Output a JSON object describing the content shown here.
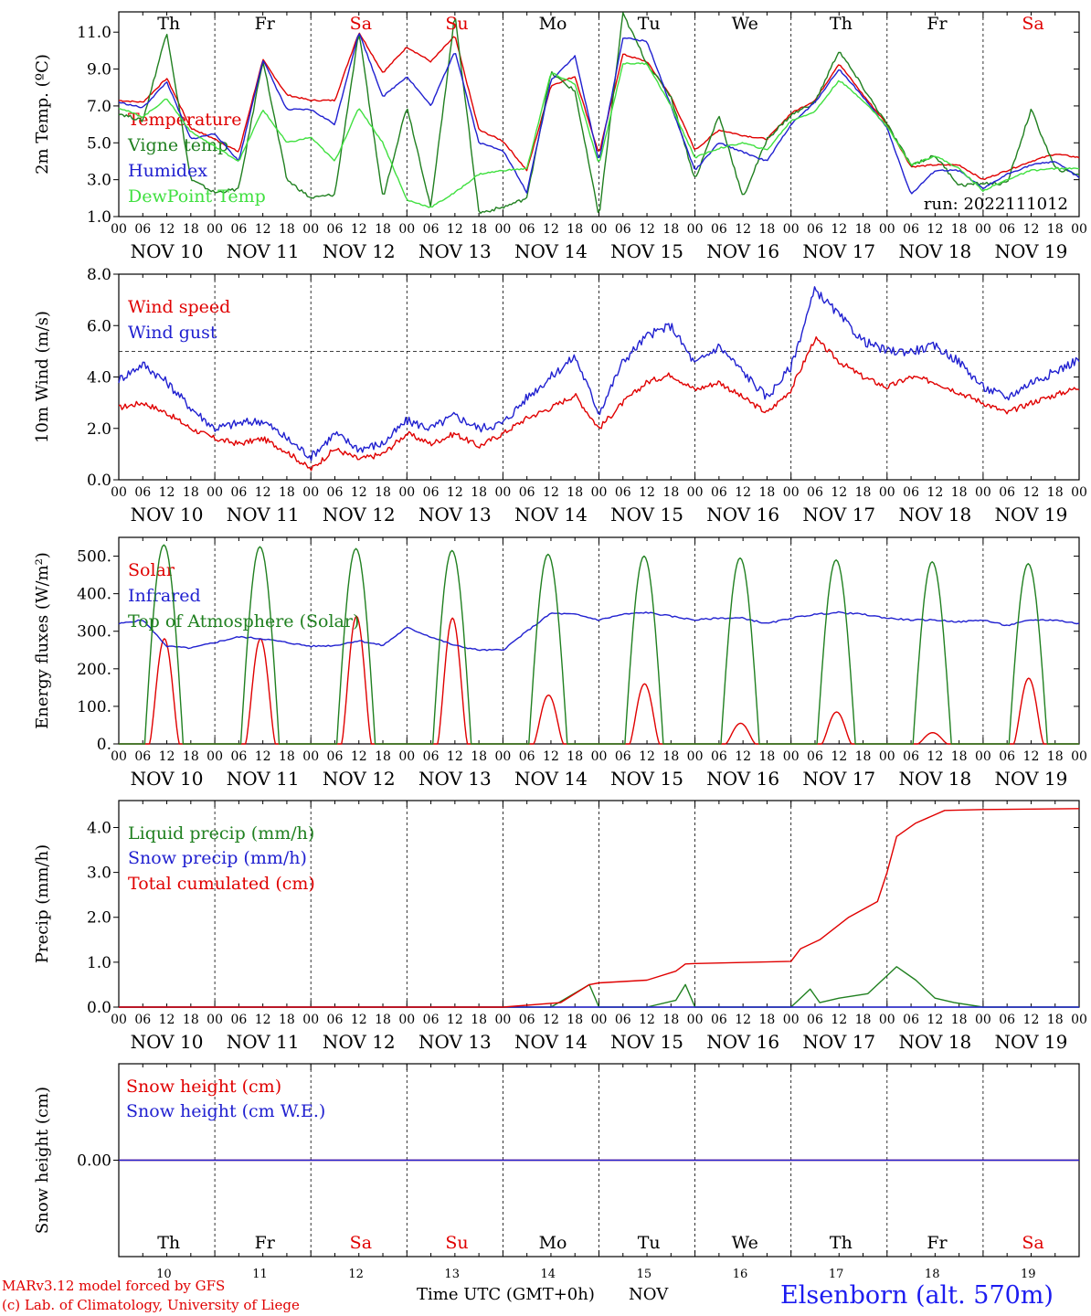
{
  "station": "Elsenborn (alt. 570m)",
  "credit": [
    "MARv3.12 model forced by GFS",
    "(c) Lab. of Climatology, University of Liege"
  ],
  "xaxis": {
    "title": "Time UTC (GMT+0h)",
    "month": "NOV",
    "hour_labels": [
      "00",
      "06",
      "12",
      "18"
    ],
    "end_label": "00",
    "day_labels": [
      "NOV 10",
      "NOV 11",
      "NOV 12",
      "NOV 13",
      "NOV 14",
      "NOV 15",
      "NOV 16",
      "NOV 17",
      "NOV 18",
      "NOV 19"
    ],
    "day_numbers": [
      "10",
      "11",
      "12",
      "13",
      "14",
      "15",
      "16",
      "17",
      "18",
      "19"
    ],
    "weekdays": [
      "Th",
      "Fr",
      "Sa",
      "Su",
      "Mo",
      "Tu",
      "We",
      "Th",
      "Fr",
      "Sa"
    ],
    "weekday_colors": [
      "#000000",
      "#000000",
      "#e00000",
      "#e00000",
      "#000000",
      "#000000",
      "#000000",
      "#000000",
      "#000000",
      "#e00000"
    ]
  },
  "chart_data": [
    {
      "type": "line",
      "ylabel": "2m Temp. (ºC)",
      "yticks": [
        "1.0",
        "3.0",
        "5.0",
        "7.0",
        "9.0",
        "11.0"
      ],
      "ylim": [
        1,
        12.1
      ],
      "annotation": "run: 2022111012",
      "x_unit": "day offset from NOV 10 00 UTC",
      "series": [
        {
          "name": "Temperature",
          "color": "#e00000",
          "x": [
            0,
            0.25,
            0.5,
            0.75,
            1,
            1.25,
            1.5,
            1.75,
            2,
            2.25,
            2.5,
            2.75,
            3,
            3.25,
            3.5,
            3.75,
            4,
            4.25,
            4.5,
            4.75,
            5,
            5.25,
            5.5,
            5.75,
            6,
            6.25,
            6.5,
            6.75,
            7,
            7.25,
            7.5,
            7.75,
            8,
            8.25,
            8.5,
            8.75,
            9,
            9.25,
            9.5,
            9.75,
            10
          ],
          "values": [
            7.3,
            7.2,
            8.5,
            5.8,
            5.2,
            4.5,
            9.5,
            7.6,
            7.3,
            7.3,
            11.0,
            8.8,
            10.2,
            9.4,
            10.8,
            5.7,
            5.1,
            3.5,
            8.1,
            8.6,
            4.4,
            9.8,
            9.4,
            7.5,
            4.6,
            5.7,
            5.4,
            5.2,
            6.6,
            7.3,
            9.3,
            7.6,
            6.0,
            3.7,
            3.8,
            3.8,
            3.0,
            3.5,
            4.0,
            4.4,
            4.2
          ]
        },
        {
          "name": "Vigne temp",
          "color": "#208020",
          "x": [
            0,
            0.25,
            0.5,
            0.75,
            1,
            1.25,
            1.5,
            1.75,
            2,
            2.25,
            2.5,
            2.75,
            3,
            3.25,
            3.5,
            3.75,
            4,
            4.25,
            4.5,
            4.75,
            5,
            5.25,
            5.5,
            5.75,
            6,
            6.25,
            6.5,
            6.75,
            7,
            7.25,
            7.5,
            7.75,
            8,
            8.25,
            8.5,
            8.75,
            9,
            9.25,
            9.5,
            9.75,
            10
          ],
          "values": [
            6.6,
            6.2,
            11.0,
            3.0,
            2.3,
            2.5,
            9.5,
            3.0,
            2.0,
            2.2,
            11.0,
            2.0,
            7.0,
            1.5,
            12.0,
            1.2,
            1.5,
            2.0,
            8.8,
            7.8,
            1.0,
            12.0,
            9.3,
            7.5,
            3.0,
            6.5,
            2.0,
            5.2,
            6.5,
            7.2,
            10.0,
            8.0,
            6.0,
            3.8,
            4.3,
            2.7,
            2.8,
            2.8,
            6.8,
            3.6,
            3.3
          ]
        },
        {
          "name": "Humidex",
          "color": "#2020d0",
          "x": [
            0,
            0.25,
            0.5,
            0.75,
            1,
            1.25,
            1.5,
            1.75,
            2,
            2.25,
            2.5,
            2.75,
            3,
            3.25,
            3.5,
            3.75,
            4,
            4.25,
            4.5,
            4.75,
            5,
            5.25,
            5.5,
            5.75,
            6,
            6.25,
            6.5,
            6.75,
            7,
            7.25,
            7.5,
            7.75,
            8,
            8.25,
            8.5,
            8.75,
            9,
            9.25,
            9.5,
            9.75,
            10
          ],
          "values": [
            7.2,
            6.9,
            8.3,
            5.2,
            5.5,
            4.0,
            9.5,
            6.8,
            6.8,
            6.0,
            11.0,
            7.5,
            8.6,
            7.0,
            10.0,
            5.0,
            4.6,
            2.3,
            8.4,
            9.7,
            4.0,
            10.7,
            10.5,
            7.0,
            3.5,
            5.0,
            4.5,
            4.0,
            6.0,
            7.2,
            9.0,
            7.5,
            5.8,
            2.2,
            3.5,
            3.5,
            2.5,
            3.3,
            3.8,
            4.0,
            3.1
          ]
        },
        {
          "name": "DewPoint Temp",
          "color": "#40e040",
          "x": [
            0,
            0.25,
            0.5,
            0.75,
            1,
            1.25,
            1.5,
            1.75,
            2,
            2.25,
            2.5,
            2.75,
            3,
            3.25,
            3.5,
            3.75,
            4,
            4.25,
            4.5,
            4.75,
            5,
            5.25,
            5.5,
            5.75,
            6,
            6.25,
            6.5,
            6.75,
            7,
            7.25,
            7.5,
            7.75,
            8,
            8.25,
            8.5,
            8.75,
            9,
            9.25,
            9.5,
            9.75,
            10
          ],
          "values": [
            6.9,
            6.4,
            7.4,
            5.6,
            4.8,
            4.0,
            6.8,
            5.0,
            5.3,
            4.0,
            6.9,
            5.0,
            1.9,
            1.5,
            2.3,
            3.3,
            3.5,
            3.6,
            8.8,
            8.2,
            3.8,
            9.3,
            9.3,
            7.0,
            4.2,
            4.7,
            5.0,
            4.6,
            6.2,
            6.7,
            8.4,
            7.3,
            5.9,
            3.8,
            4.3,
            3.6,
            2.4,
            3.0,
            3.5,
            3.6,
            3.6
          ]
        }
      ]
    },
    {
      "type": "line",
      "ylabel": "10m Wind (m/s)",
      "yticks": [
        "0.0",
        "2.0",
        "4.0",
        "6.0",
        "8.0"
      ],
      "ylim": [
        0,
        8
      ],
      "reference_line": 5,
      "x_unit": "day offset from NOV 10 00 UTC",
      "series": [
        {
          "name": "Wind speed",
          "color": "#e00000",
          "x": [
            0,
            0.25,
            0.5,
            0.75,
            1,
            1.25,
            1.5,
            1.75,
            2,
            2.25,
            2.5,
            2.75,
            3,
            3.25,
            3.5,
            3.75,
            4,
            4.25,
            4.5,
            4.75,
            5,
            5.25,
            5.5,
            5.75,
            6,
            6.25,
            6.5,
            6.75,
            7,
            7.25,
            7.5,
            7.75,
            8,
            8.25,
            8.5,
            8.75,
            9,
            9.25,
            9.5,
            9.75,
            10
          ],
          "values": [
            2.8,
            3.0,
            2.6,
            2.0,
            1.6,
            1.4,
            1.6,
            1.1,
            0.4,
            1.2,
            0.8,
            1.0,
            1.8,
            1.4,
            1.8,
            1.3,
            1.8,
            2.4,
            2.8,
            3.3,
            2.0,
            3.0,
            3.8,
            4.1,
            3.5,
            3.8,
            3.2,
            2.6,
            3.5,
            5.5,
            4.6,
            4.0,
            3.6,
            4.0,
            3.8,
            3.4,
            3.0,
            2.6,
            3.0,
            3.3,
            3.6
          ]
        },
        {
          "name": "Wind gust",
          "color": "#2020d0",
          "x": [
            0,
            0.25,
            0.5,
            0.75,
            1,
            1.25,
            1.5,
            1.75,
            2,
            2.25,
            2.5,
            2.75,
            3,
            3.25,
            3.5,
            3.75,
            4,
            4.25,
            4.5,
            4.75,
            5,
            5.25,
            5.5,
            5.75,
            6,
            6.25,
            6.5,
            6.75,
            7,
            7.25,
            7.5,
            7.75,
            8,
            8.25,
            8.5,
            8.75,
            9,
            9.25,
            9.5,
            9.75,
            10
          ],
          "values": [
            3.9,
            4.5,
            3.8,
            2.8,
            2.0,
            2.2,
            2.3,
            1.6,
            0.9,
            1.8,
            1.2,
            1.4,
            2.3,
            2.0,
            2.5,
            2.0,
            2.2,
            3.2,
            4.0,
            4.8,
            2.6,
            4.6,
            5.6,
            6.0,
            4.5,
            5.2,
            4.2,
            3.2,
            4.4,
            7.4,
            6.4,
            5.4,
            5.0,
            5.0,
            5.2,
            4.6,
            3.6,
            3.2,
            3.8,
            4.2,
            4.7
          ]
        }
      ]
    },
    {
      "type": "line",
      "ylabel": "Energy fluxes (W/m²)",
      "yticks": [
        "0.",
        "100.",
        "200.",
        "300.",
        "400.",
        "500."
      ],
      "ylim": [
        0,
        550
      ],
      "x_unit": "day offset from NOV 10 00 UTC",
      "series": [
        {
          "name": "Solar",
          "color": "#e00000",
          "peaks": [
            280,
            280,
            340,
            335,
            130,
            160,
            55,
            85,
            30,
            175
          ]
        },
        {
          "name": "Infrared",
          "color": "#2020d0",
          "x": [
            0,
            0.25,
            0.5,
            0.75,
            1,
            1.25,
            1.5,
            1.75,
            2,
            2.25,
            2.5,
            2.75,
            3,
            3.25,
            3.5,
            3.75,
            4,
            4.25,
            4.5,
            4.75,
            5,
            5.25,
            5.5,
            5.75,
            6,
            6.25,
            6.5,
            6.75,
            7,
            7.25,
            7.5,
            7.75,
            8,
            8.25,
            8.5,
            8.75,
            9,
            9.25,
            9.5,
            9.75,
            10
          ],
          "values": [
            320,
            330,
            260,
            255,
            270,
            285,
            280,
            270,
            260,
            262,
            275,
            262,
            310,
            285,
            262,
            250,
            250,
            300,
            348,
            345,
            330,
            345,
            350,
            340,
            330,
            335,
            335,
            320,
            335,
            345,
            350,
            345,
            335,
            330,
            330,
            325,
            330,
            315,
            330,
            330,
            320
          ]
        },
        {
          "name": "Top of Atmosphere (Solar)",
          "color": "#208020",
          "peaks": [
            530,
            525,
            520,
            515,
            505,
            500,
            495,
            490,
            485,
            480
          ]
        }
      ]
    },
    {
      "type": "line",
      "ylabel": "Precip (mm/h)",
      "yticks": [
        "0.0",
        "1.0",
        "2.0",
        "3.0",
        "4.0"
      ],
      "ylim": [
        0,
        4.6
      ],
      "x_unit": "day offset from NOV 10 00 UTC",
      "series": [
        {
          "name": "Liquid precip (mm/h)",
          "color": "#208020",
          "x": [
            0,
            3.9,
            4.5,
            4.7,
            4.9,
            5.0,
            5.5,
            5.8,
            5.9,
            6.0,
            7.0,
            7.2,
            7.3,
            7.5,
            7.8,
            8.0,
            8.1,
            8.3,
            8.5,
            8.7,
            9.0,
            10
          ],
          "values": [
            0,
            0,
            0,
            0.25,
            0.5,
            0,
            0,
            0.15,
            0.5,
            0,
            0,
            0.4,
            0.1,
            0.2,
            0.3,
            0.7,
            0.9,
            0.6,
            0.2,
            0.1,
            0,
            0
          ]
        },
        {
          "name": "Snow precip (mm/h)",
          "color": "#2020d0",
          "x": [
            0,
            10
          ],
          "values": [
            0,
            0
          ]
        },
        {
          "name": "Total cumulated (cm)",
          "color": "#e00000",
          "x": [
            0,
            4.0,
            4.6,
            4.9,
            5.0,
            5.5,
            5.8,
            5.9,
            6.0,
            7.0,
            7.1,
            7.3,
            7.6,
            7.9,
            8.0,
            8.1,
            8.3,
            8.6,
            9.0,
            10
          ],
          "values": [
            0,
            0,
            0.1,
            0.5,
            0.54,
            0.6,
            0.8,
            0.96,
            0.97,
            1.02,
            1.3,
            1.5,
            2.0,
            2.35,
            3.0,
            3.8,
            4.1,
            4.38,
            4.4,
            4.42
          ]
        }
      ]
    },
    {
      "type": "line",
      "ylabel": "Snow height (cm)",
      "yticks": [
        "0.00"
      ],
      "ylim": [
        -1,
        1
      ],
      "x_unit": "day offset from NOV 10 00 UTC",
      "series": [
        {
          "name": "Snow height (cm)",
          "color": "#e00000",
          "x": [
            0,
            10
          ],
          "values": [
            0,
            0
          ]
        },
        {
          "name": "Snow height (cm W.E.)",
          "color": "#2020d0",
          "x": [
            0,
            10
          ],
          "values": [
            0,
            0
          ]
        }
      ]
    }
  ]
}
